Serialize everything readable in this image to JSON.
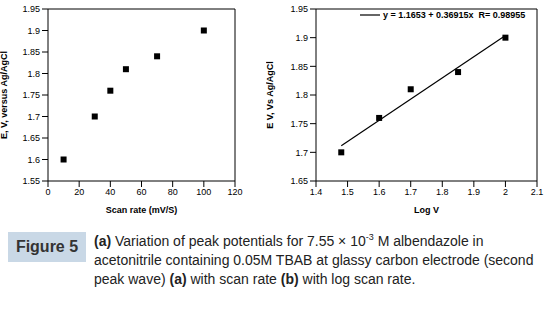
{
  "chart_data": [
    {
      "type": "scatter",
      "xlabel": "Scan rate (mV/S)",
      "ylabel": "E, V, versus Ag/AgCl",
      "xlim": [
        0,
        120
      ],
      "xticks": [
        0,
        20,
        40,
        60,
        80,
        100,
        120
      ],
      "ylim": [
        1.55,
        1.95
      ],
      "yticks": [
        1.55,
        1.6,
        1.65,
        1.7,
        1.75,
        1.8,
        1.85,
        1.9,
        1.95
      ],
      "grid": false,
      "series": [
        {
          "type": "scatter",
          "color": "#000000",
          "marker": "square",
          "x": [
            10,
            30,
            40,
            50,
            70,
            100
          ],
          "values": [
            1.6,
            1.7,
            1.76,
            1.81,
            1.84,
            1.9
          ]
        }
      ]
    },
    {
      "type": "scatter",
      "xlabel": "Log V",
      "ylabel": "E V, Vs Ag/AgCl",
      "xlim": [
        1.4,
        2.1
      ],
      "xticks": [
        1.4,
        1.5,
        1.6,
        1.7,
        1.8,
        1.9,
        2,
        2.1
      ],
      "ylim": [
        1.65,
        1.95
      ],
      "yticks": [
        1.65,
        1.7,
        1.75,
        1.8,
        1.85,
        1.9,
        1.95
      ],
      "grid": false,
      "legend": "top",
      "series": [
        {
          "type": "scatter",
          "color": "#000000",
          "marker": "square",
          "x": [
            1.48,
            1.6,
            1.7,
            1.85,
            2
          ],
          "values": [
            1.7,
            1.76,
            1.81,
            1.84,
            1.9
          ]
        },
        {
          "type": "line",
          "name": "y = 1.1653 + 0.36915x  R= 0.98955",
          "color": "#000000",
          "line_style": "solid",
          "x": [
            1.48,
            2
          ],
          "values": [
            1.7116,
            1.9036
          ]
        }
      ]
    }
  ],
  "figure_label": "Figure 5",
  "caption": [
    {
      "text": "(a)",
      "bold": true
    },
    {
      "text": " Variation of peak potentials for 7.55 × 10"
    },
    {
      "text": "-3",
      "superscript": true
    },
    {
      "text": " M albendazole in acetonitrile containing 0.05M TBAB at glassy carbon electrode (second peak wave) "
    },
    {
      "text": "(a)",
      "bold": true
    },
    {
      "text": " with scan rate "
    },
    {
      "text": "(b)",
      "bold": true
    },
    {
      "text": " with log scan rate."
    }
  ]
}
